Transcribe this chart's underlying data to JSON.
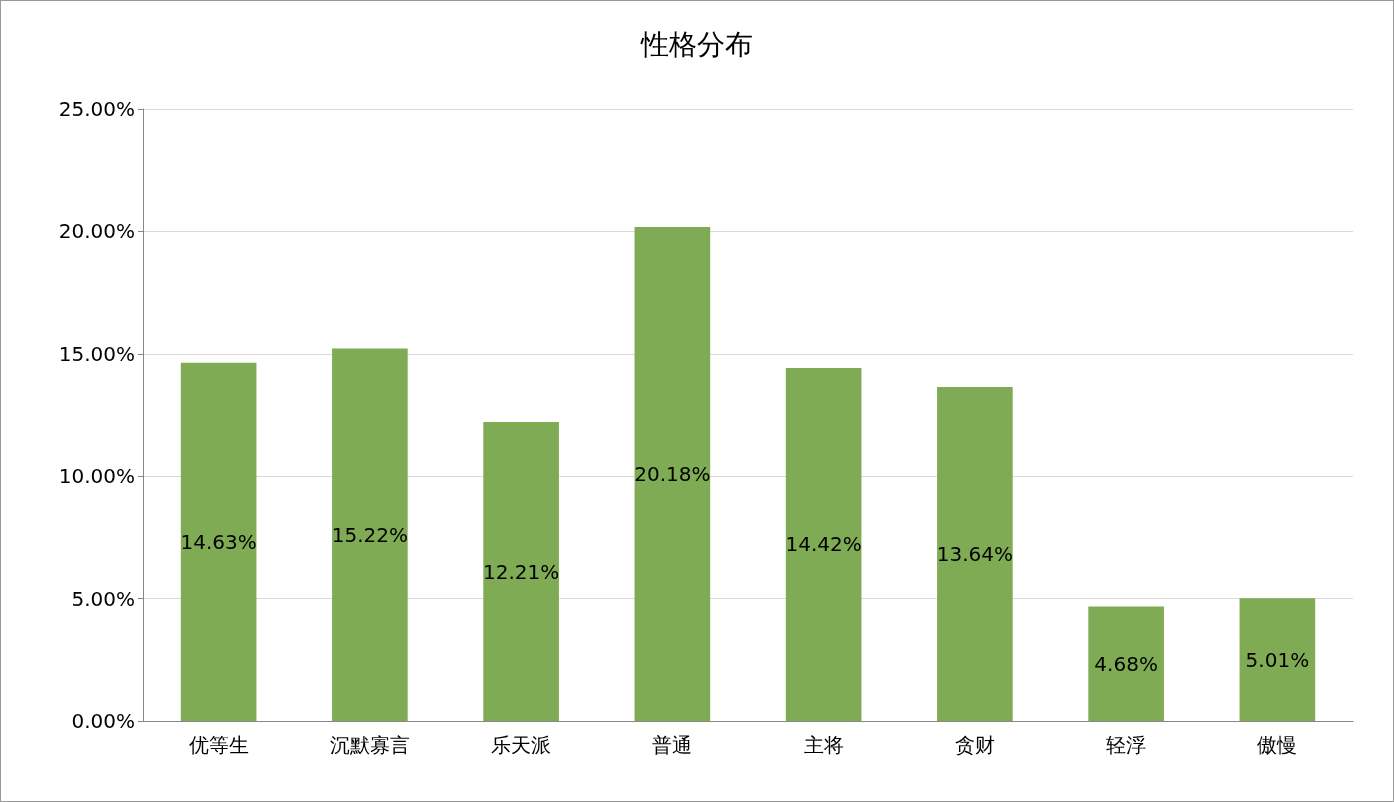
{
  "chart_data": {
    "type": "bar",
    "title": "性格分布",
    "categories": [
      "优等生",
      "沉默寡言",
      "乐天派",
      "普通",
      "主将",
      "贪财",
      "轻浮",
      "傲慢"
    ],
    "values": [
      14.63,
      15.22,
      12.21,
      20.18,
      14.42,
      13.64,
      4.68,
      5.01
    ],
    "value_labels": [
      "14.63%",
      "15.22%",
      "12.21%",
      "20.18%",
      "14.42%",
      "13.64%",
      "4.68%",
      "5.01%"
    ],
    "color": "#7fab55",
    "ylim": [
      0,
      25
    ],
    "yticks": [
      {
        "value": 0,
        "label": "0.00%"
      },
      {
        "value": 5,
        "label": "5.00%"
      },
      {
        "value": 10,
        "label": "10.00%"
      },
      {
        "value": 15,
        "label": "15.00%"
      },
      {
        "value": 20,
        "label": "20.00%"
      },
      {
        "value": 25,
        "label": "25.00%"
      }
    ],
    "grid": "y"
  }
}
